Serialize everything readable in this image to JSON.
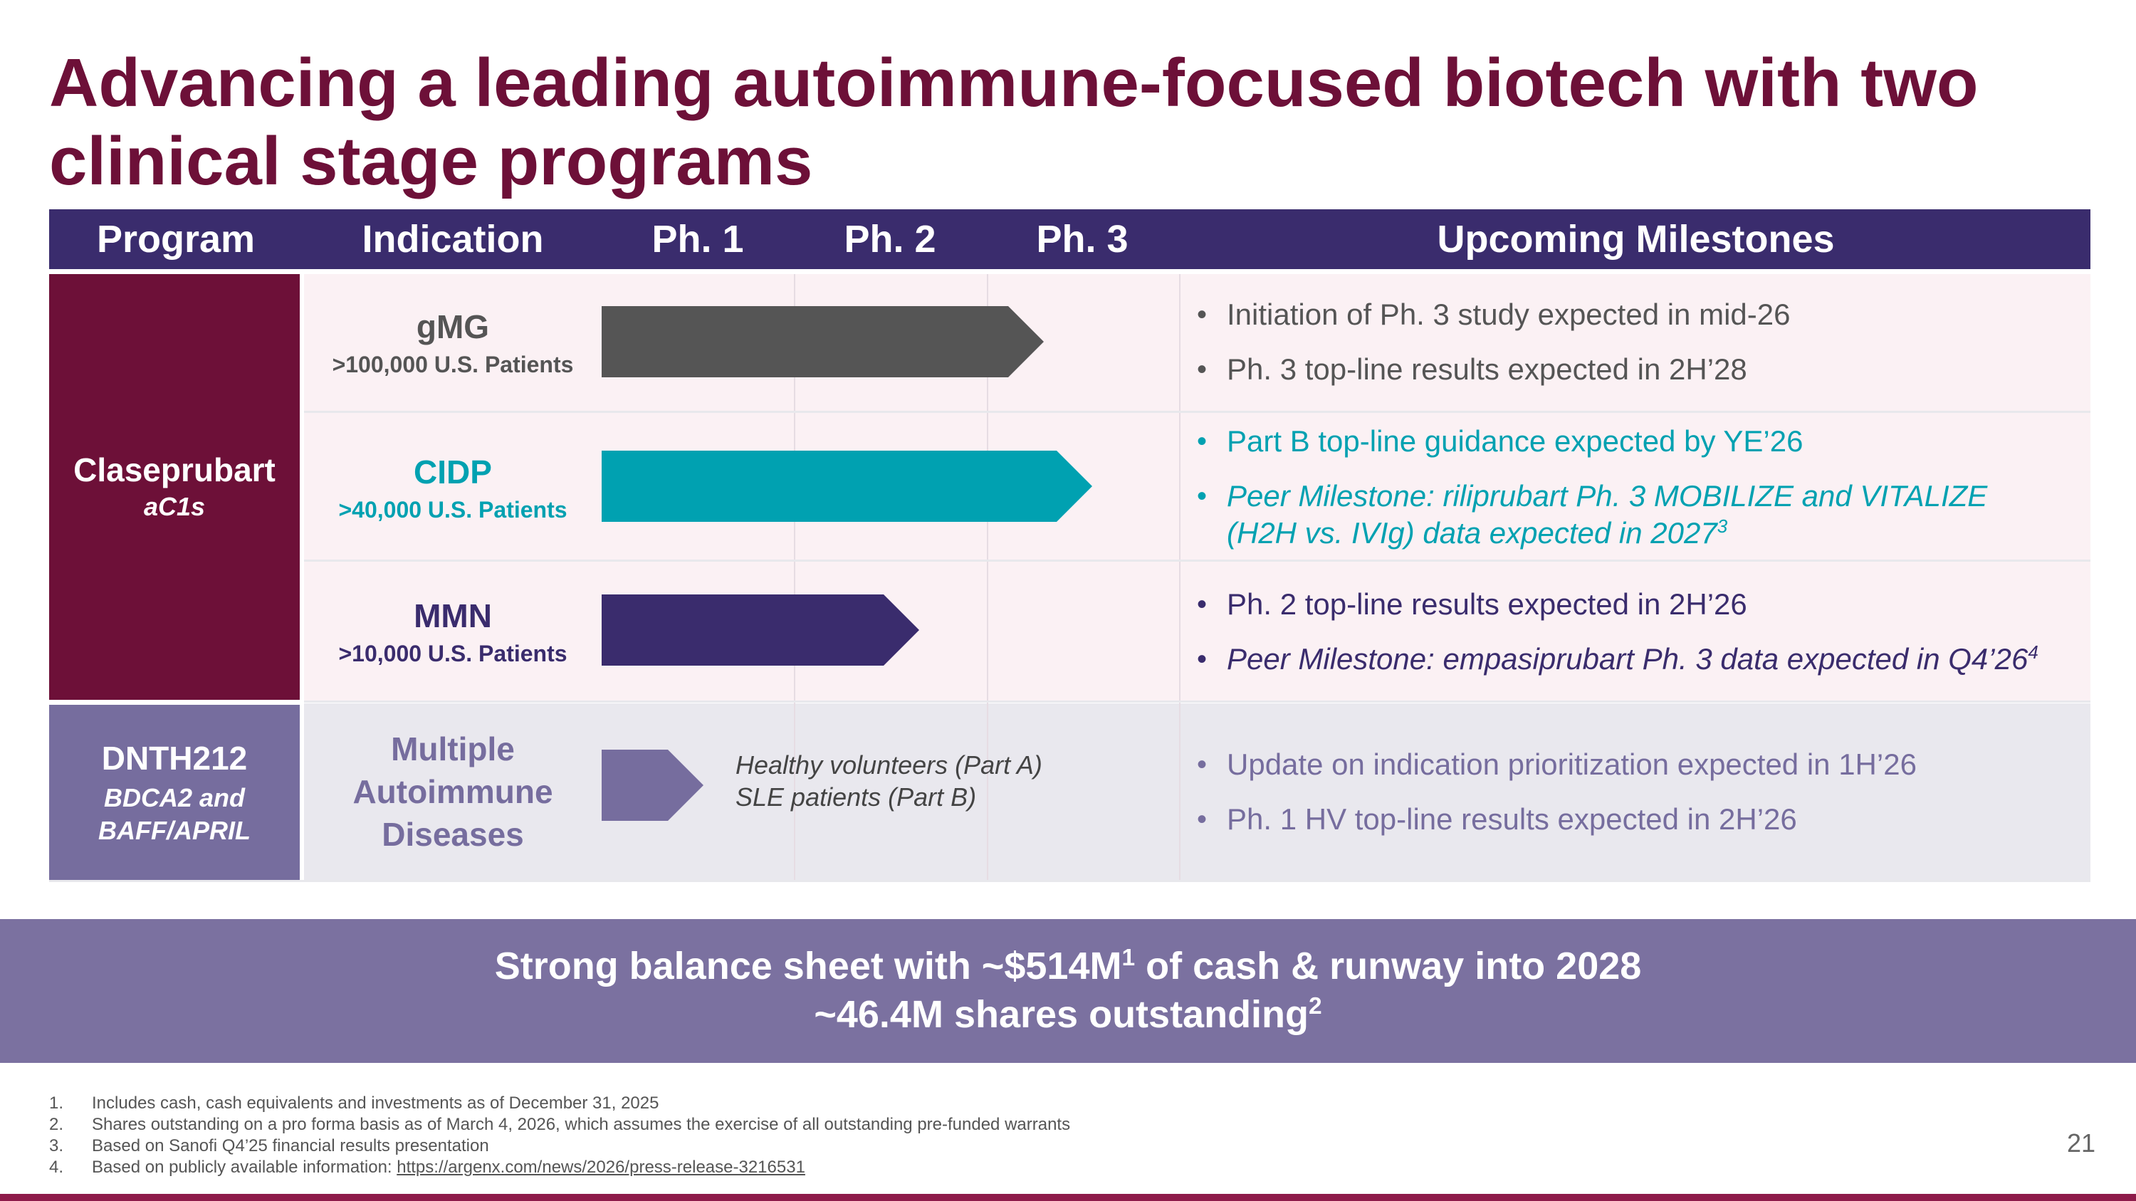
{
  "title": "Advancing a leading autoimmune-focused biotech with two\nclinical stage programs",
  "colors": {
    "maroon": "#6d1038",
    "navy": "#3a2c6d",
    "teal": "#00a1b1",
    "gray_arrow": "#555555",
    "lavender": "#766d9e",
    "pink_bg": "#fbf1f4",
    "gray_bg": "#e9e8ee"
  },
  "header": {
    "program": "Program",
    "indication": "Indication",
    "ph1": "Ph. 1",
    "ph2": "Ph. 2",
    "ph3": "Ph. 3",
    "milestones": "Upcoming Milestones"
  },
  "programs": [
    {
      "name": "Claseprubart",
      "target": "aC1s",
      "indications": [
        {
          "name": "gMG",
          "patients": ">100,000 U.S. Patients",
          "progress_phase": 2.3,
          "milestones": [
            "Initiation of Ph. 3 study expected in mid-26",
            "Ph. 3 top-line results expected in 2H’28"
          ]
        },
        {
          "name": "CIDP",
          "patients": ">40,000 U.S. Patients",
          "progress_phase": 2.55,
          "milestones": [
            "Part B top-line guidance expected by YE’26",
            "Peer Milestone: riliprubart Ph. 3 MOBILIZE and VITALIZE (H2H vs. IVIg) data expected in 2027",
            "3"
          ]
        },
        {
          "name": "MMN",
          "patients": ">10,000 U.S. Patients",
          "progress_phase": 1.65,
          "milestones": [
            "Ph. 2 top-line results expected in 2H’26",
            "Peer Milestone: empasiprubart Ph. 3 data expected in Q4’26",
            "4"
          ]
        }
      ]
    },
    {
      "name": "DNTH212",
      "target": "BDCA2 and BAFF/APRIL",
      "indications": [
        {
          "name": "Multiple Autoimmune Diseases",
          "progress_phase": 0.53,
          "note_line1": "Healthy volunteers (Part A)",
          "note_line2": "SLE patients (Part B)",
          "milestones": [
            "Update on indication prioritization expected in 1H’26",
            "Ph. 1 HV top-line results expected in 2H’26"
          ]
        }
      ]
    }
  ],
  "banner": {
    "line1_a": "Strong balance sheet with ~$514M",
    "line1_sup": "1",
    "line1_b": " of cash & runway into 2028",
    "line2_a": "~46.4M shares outstanding",
    "line2_sup": "2"
  },
  "footnotes": [
    {
      "num": "1.",
      "text": "Includes cash, cash equivalents and investments as of December 31, 2025"
    },
    {
      "num": "2.",
      "text": "Shares outstanding on a pro forma basis as of March 4, 2026, which assumes the exercise of all outstanding pre-funded warrants"
    },
    {
      "num": "3.",
      "text": "Based on Sanofi Q4’25 financial results presentation"
    },
    {
      "num": "4.",
      "text": "Based on publicly available information: ",
      "link": "https://argenx.com/news/2026/press-release-3216531"
    }
  ],
  "page_number": "21"
}
